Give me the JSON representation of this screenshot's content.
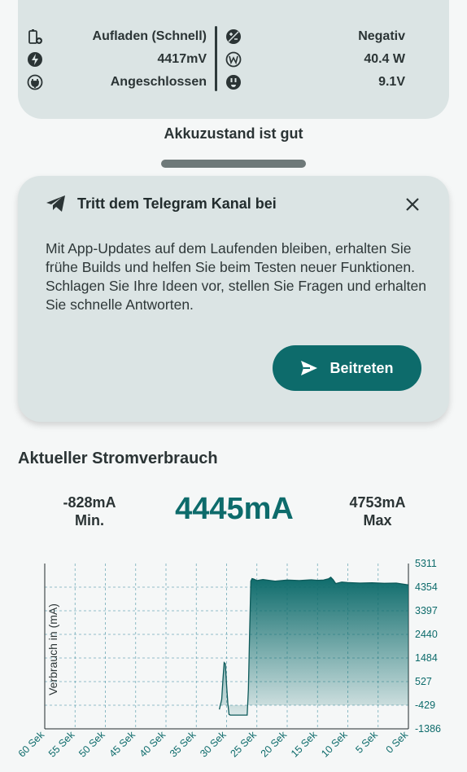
{
  "status": {
    "left": [
      {
        "icon": "battery-charging-icon",
        "value": "Aufladen (Schnell)"
      },
      {
        "icon": "bolt-icon",
        "value": "4417mV"
      },
      {
        "icon": "plug-icon",
        "value": "Angeschlossen"
      }
    ],
    "right": [
      {
        "icon": "polarity-icon",
        "value": "Negativ"
      },
      {
        "icon": "watt-icon",
        "value": "40.4 W"
      },
      {
        "icon": "socket-icon",
        "value": "9.1V"
      }
    ]
  },
  "health_text": "Akkuzustand ist gut",
  "telegram": {
    "title": "Tritt dem Telegram Kanal bei",
    "body": "Mit App-Updates auf dem Laufenden bleiben, erhalten Sie frühe Builds und helfen Sie beim Testen neuer Funktionen.\nSchlagen Sie Ihre Ideen vor, stellen Sie Fragen und erhalten Sie schnelle Antworten.",
    "button": "Beitreten"
  },
  "current": {
    "section_title": "Aktueller Stromverbrauch",
    "min_value": "-828mA",
    "min_label": "Min.",
    "now_value": "4445mA",
    "max_value": "4753mA",
    "max_label": "Max"
  },
  "colors": {
    "accent": "#0d6b6b",
    "card": "#dbe4e4",
    "background": "#f5f7f7"
  },
  "chart_data": {
    "type": "area",
    "ylabel": "Verbrauch in (mA)",
    "x_tick_labels": [
      "60 Sek",
      "55 Sek",
      "50 Sek",
      "45 Sek",
      "40 Sek",
      "35 Sek",
      "30 Sek",
      "25 Sek",
      "20 Sek",
      "15 Sek",
      "10 Sek",
      "5 Sek",
      "0 Sek"
    ],
    "x_ticks": [
      60,
      55,
      50,
      45,
      40,
      35,
      30,
      25,
      20,
      15,
      10,
      5,
      0
    ],
    "y_tick_labels": [
      "5311",
      "4354",
      "3397",
      "2440",
      "1484",
      "527",
      "-429",
      "-1386"
    ],
    "y_ticks": [
      5311,
      4354,
      3397,
      2440,
      1484,
      527,
      -429,
      -1386
    ],
    "xlim": [
      60,
      0
    ],
    "ylim": [
      -1386,
      5311
    ],
    "grid": true,
    "x": [
      31.2,
      30.8,
      30.6,
      30.4,
      30.2,
      30.0,
      29.8,
      29.6,
      29.4,
      29.2,
      29.0,
      28.5,
      28.0,
      27.5,
      27.0,
      26.6,
      26.4,
      26.2,
      26.0,
      25.8,
      25.5,
      25.0,
      24.0,
      22.0,
      20.0,
      18.0,
      16.0,
      15.0,
      14.0,
      13.2,
      12.8,
      12.4,
      12.0,
      11.0,
      10.0,
      8.0,
      6.0,
      4.0,
      2.0,
      0.0
    ],
    "y": [
      -600,
      -200,
      600,
      1300,
      1250,
      400,
      -350,
      -800,
      -828,
      -828,
      -828,
      -828,
      -828,
      -828,
      -828,
      -828,
      200,
      2500,
      4600,
      4700,
      4680,
      4620,
      4660,
      4600,
      4640,
      4620,
      4650,
      4630,
      4640,
      4690,
      4753,
      4650,
      4500,
      4560,
      4540,
      4520,
      4530,
      4510,
      4520,
      4445
    ]
  }
}
